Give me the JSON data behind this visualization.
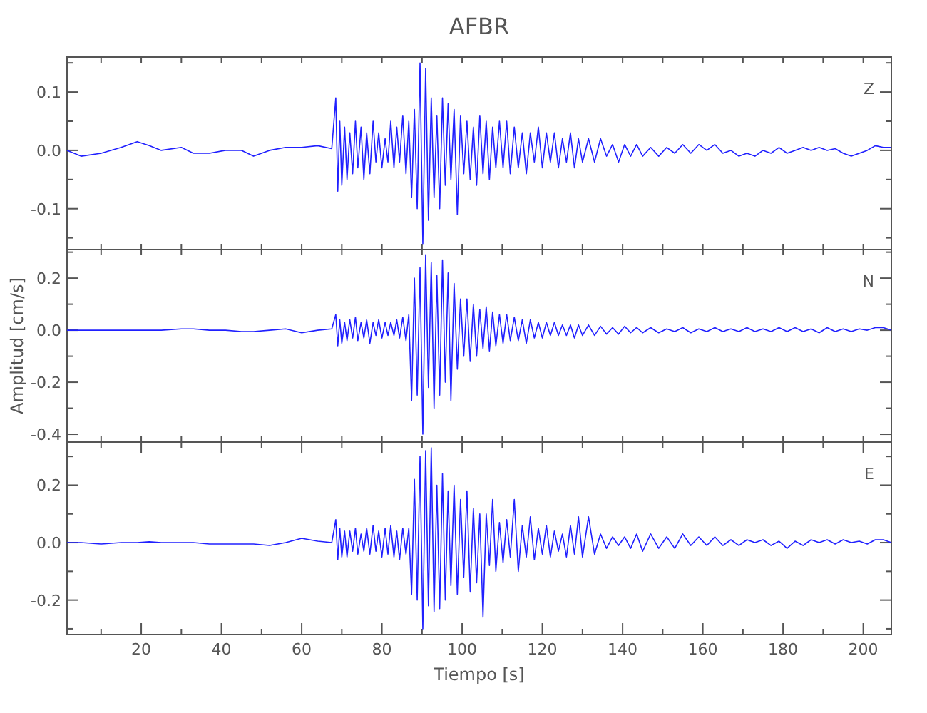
{
  "chart_data": [
    {
      "type": "line",
      "title": "AFBR",
      "annotations": [
        "Z"
      ],
      "tick_labels": "y",
      "xlim": [
        1.5,
        207
      ],
      "ylim": [
        -0.17,
        0.16
      ],
      "xticks": [
        {
          "value": 10,
          "label": null
        },
        {
          "value": 20,
          "label": null
        },
        {
          "value": 30,
          "label": null
        },
        {
          "value": 40,
          "label": null
        },
        {
          "value": 50,
          "label": null
        },
        {
          "value": 60,
          "label": null
        },
        {
          "value": 70,
          "label": null
        },
        {
          "value": 80,
          "label": null
        },
        {
          "value": 90,
          "label": null
        },
        {
          "value": 100,
          "label": null
        },
        {
          "value": 110,
          "label": null
        },
        {
          "value": 120,
          "label": null
        },
        {
          "value": 130,
          "label": null
        },
        {
          "value": 140,
          "label": null
        },
        {
          "value": 150,
          "label": null
        },
        {
          "value": 160,
          "label": null
        },
        {
          "value": 170,
          "label": null
        },
        {
          "value": 180,
          "label": null
        },
        {
          "value": 190,
          "label": null
        },
        {
          "value": 200,
          "label": null
        }
      ],
      "yticks": [
        {
          "value": -0.15,
          "label": null
        },
        -0.1,
        {
          "value": -0.05,
          "label": null
        },
        {
          "value": 0,
          "label": "0.0"
        },
        {
          "value": 0.05,
          "label": null
        },
        0.1,
        {
          "value": 0.15,
          "label": null
        }
      ],
      "x": [
        1.5,
        5,
        10,
        15,
        19,
        22,
        25,
        30,
        33,
        37,
        41,
        45,
        48,
        52,
        56,
        60,
        64,
        67.5,
        68.5,
        69,
        69.5,
        70,
        70.7,
        71.3,
        72,
        72.7,
        73.4,
        74,
        74.8,
        75.5,
        76.2,
        77,
        77.8,
        78.5,
        79.2,
        80,
        80.8,
        81.5,
        82.2,
        83,
        83.7,
        84.4,
        85.2,
        86,
        86.7,
        87.4,
        88.1,
        88.8,
        89.5,
        90.2,
        90.9,
        91.6,
        92.3,
        93,
        93.7,
        94.4,
        95.1,
        95.8,
        96.5,
        97.2,
        98,
        98.8,
        99.6,
        100.4,
        101.2,
        102,
        102.8,
        103.6,
        104.4,
        105.2,
        106,
        106.8,
        107.6,
        108.4,
        109.3,
        110.2,
        111.1,
        112,
        113,
        114,
        115,
        116,
        117,
        118,
        119,
        120,
        121,
        122,
        123,
        124,
        125,
        126,
        127,
        128,
        129,
        130,
        131.5,
        133,
        134.5,
        136,
        137.5,
        139,
        140.5,
        142,
        143.5,
        145,
        147,
        149,
        151,
        153,
        155,
        157,
        159,
        161,
        163,
        165,
        167,
        169,
        171,
        173,
        175,
        177,
        179,
        181,
        183,
        185,
        187,
        189,
        191,
        193,
        195,
        197,
        199,
        201,
        203,
        205,
        207
      ],
      "series": [
        {
          "color": "#2020ff",
          "values": [
            0,
            -0.01,
            -0.005,
            0.005,
            0.015,
            0.008,
            0,
            0.005,
            -0.005,
            -0.005,
            0,
            0,
            -0.01,
            0,
            0.005,
            0.005,
            0.008,
            0.003,
            0.09,
            -0.07,
            0.05,
            -0.06,
            0.04,
            -0.05,
            0.03,
            -0.04,
            0.05,
            -0.03,
            0.04,
            -0.05,
            0.03,
            -0.04,
            0.05,
            -0.02,
            0.03,
            -0.03,
            0.02,
            -0.02,
            0.05,
            -0.03,
            0.04,
            -0.02,
            0.06,
            -0.04,
            0.05,
            -0.08,
            0.07,
            -0.1,
            0.15,
            -0.16,
            0.14,
            -0.12,
            0.09,
            -0.08,
            0.06,
            -0.1,
            0.09,
            -0.06,
            0.08,
            -0.05,
            0.07,
            -0.11,
            0.06,
            -0.04,
            0.05,
            -0.05,
            0.04,
            -0.06,
            0.06,
            -0.04,
            0.05,
            -0.05,
            0.04,
            -0.03,
            0.05,
            -0.03,
            0.05,
            -0.04,
            0.04,
            -0.03,
            0.03,
            -0.04,
            0.03,
            -0.02,
            0.04,
            -0.03,
            0.03,
            -0.02,
            0.03,
            -0.03,
            0.02,
            -0.02,
            0.03,
            -0.03,
            0.02,
            -0.02,
            0.02,
            -0.02,
            0.02,
            -0.01,
            0.01,
            -0.02,
            0.01,
            -0.01,
            0.01,
            -0.01,
            0.005,
            -0.01,
            0.005,
            -0.005,
            0.01,
            -0.005,
            0.01,
            0,
            0.01,
            -0.005,
            0,
            -0.01,
            -0.005,
            -0.01,
            0,
            -0.005,
            0.005,
            -0.005,
            0,
            0.005,
            0,
            0.005,
            0,
            0.003,
            -0.005,
            -0.01,
            -0.005,
            0,
            0.008,
            0.005,
            0.005
          ]
        }
      ]
    },
    {
      "type": "line",
      "ylabel": "Amplitud [cm/s]",
      "annotations": [
        "N"
      ],
      "tick_labels": "y",
      "xlim": [
        1.5,
        207
      ],
      "ylim": [
        -0.43,
        0.31
      ],
      "xticks": [
        {
          "value": 10,
          "label": null
        },
        {
          "value": 20,
          "label": null
        },
        {
          "value": 30,
          "label": null
        },
        {
          "value": 40,
          "label": null
        },
        {
          "value": 50,
          "label": null
        },
        {
          "value": 60,
          "label": null
        },
        {
          "value": 70,
          "label": null
        },
        {
          "value": 80,
          "label": null
        },
        {
          "value": 90,
          "label": null
        },
        {
          "value": 100,
          "label": null
        },
        {
          "value": 110,
          "label": null
        },
        {
          "value": 120,
          "label": null
        },
        {
          "value": 130,
          "label": null
        },
        {
          "value": 140,
          "label": null
        },
        {
          "value": 150,
          "label": null
        },
        {
          "value": 160,
          "label": null
        },
        {
          "value": 170,
          "label": null
        },
        {
          "value": 180,
          "label": null
        },
        {
          "value": 190,
          "label": null
        },
        {
          "value": 200,
          "label": null
        }
      ],
      "yticks": [
        -0.4,
        {
          "value": -0.3,
          "label": null
        },
        -0.2,
        {
          "value": -0.1,
          "label": null
        },
        {
          "value": 0,
          "label": "0.0"
        },
        {
          "value": 0.1,
          "label": null
        },
        0.2,
        {
          "value": 0.3,
          "label": null
        }
      ],
      "x": [
        1.5,
        5,
        10,
        15,
        19,
        22,
        25,
        30,
        33,
        37,
        41,
        45,
        48,
        52,
        56,
        60,
        64,
        67.5,
        68.5,
        69,
        69.5,
        70,
        70.7,
        71.3,
        72,
        72.7,
        73.4,
        74,
        74.8,
        75.5,
        76.2,
        77,
        77.8,
        78.5,
        79.2,
        80,
        80.8,
        81.5,
        82.2,
        83,
        83.7,
        84.4,
        85.2,
        86,
        86.7,
        87.4,
        88.1,
        88.8,
        89.5,
        90.2,
        90.9,
        91.6,
        92.3,
        93,
        93.7,
        94.4,
        95.1,
        95.8,
        96.5,
        97.2,
        98,
        98.8,
        99.6,
        100.4,
        101.2,
        102,
        102.8,
        103.6,
        104.4,
        105.2,
        106,
        106.8,
        107.6,
        108.4,
        109.3,
        110.2,
        111.1,
        112,
        113,
        114,
        115,
        116,
        117,
        118,
        119,
        120,
        121,
        122,
        123,
        124,
        125,
        126,
        127,
        128,
        129,
        130,
        131.5,
        133,
        134.5,
        136,
        137.5,
        139,
        140.5,
        142,
        143.5,
        145,
        147,
        149,
        151,
        153,
        155,
        157,
        159,
        161,
        163,
        165,
        167,
        169,
        171,
        173,
        175,
        177,
        179,
        181,
        183,
        185,
        187,
        189,
        191,
        193,
        195,
        197,
        199,
        201,
        203,
        205,
        207
      ],
      "series": [
        {
          "color": "#2020ff",
          "values": [
            0,
            0,
            0,
            0,
            0,
            0,
            0,
            0.005,
            0.005,
            0,
            0,
            -0.005,
            -0.005,
            0,
            0.005,
            -0.01,
            0,
            0.005,
            0.06,
            -0.06,
            0.04,
            -0.05,
            0.03,
            -0.04,
            0.04,
            -0.03,
            0.05,
            -0.04,
            0.03,
            -0.03,
            0.04,
            -0.05,
            0.03,
            -0.02,
            0.04,
            -0.03,
            0.03,
            -0.02,
            0.03,
            -0.02,
            0.04,
            -0.03,
            0.05,
            -0.04,
            0.06,
            -0.27,
            0.2,
            -0.25,
            0.24,
            -0.4,
            0.29,
            -0.22,
            0.26,
            -0.3,
            0.21,
            -0.25,
            0.27,
            -0.2,
            0.22,
            -0.27,
            0.18,
            -0.15,
            0.12,
            -0.1,
            0.12,
            -0.12,
            0.1,
            -0.1,
            0.08,
            -0.07,
            0.09,
            -0.08,
            0.07,
            -0.06,
            0.06,
            -0.05,
            0.06,
            -0.04,
            0.05,
            -0.04,
            0.04,
            -0.05,
            0.04,
            -0.03,
            0.03,
            -0.03,
            0.03,
            -0.02,
            0.03,
            -0.02,
            0.02,
            -0.02,
            0.02,
            -0.03,
            0.02,
            -0.02,
            0.02,
            -0.02,
            0.015,
            -0.015,
            0.01,
            -0.015,
            0.015,
            -0.01,
            0.01,
            -0.01,
            0.01,
            -0.01,
            0.005,
            -0.005,
            0.01,
            -0.01,
            0.005,
            -0.005,
            0.01,
            -0.005,
            0.005,
            -0.005,
            0.01,
            -0.005,
            0.005,
            -0.005,
            0.01,
            -0.005,
            0.01,
            -0.005,
            0.005,
            -0.01,
            0.01,
            -0.005,
            0.005,
            -0.005,
            0.005,
            0,
            0.01,
            0.01,
            0
          ]
        }
      ]
    },
    {
      "type": "line",
      "xlabel": "Tiempo [s]",
      "annotations": [
        "E"
      ],
      "xlim": [
        1.5,
        207
      ],
      "ylim": [
        -0.32,
        0.35
      ],
      "xticks": [
        {
          "value": 10,
          "label": null
        },
        20,
        {
          "value": 30,
          "label": null
        },
        40,
        {
          "value": 50,
          "label": null
        },
        60,
        {
          "value": 70,
          "label": null
        },
        80,
        {
          "value": 90,
          "label": null
        },
        100,
        {
          "value": 110,
          "label": null
        },
        120,
        {
          "value": 130,
          "label": null
        },
        140,
        {
          "value": 150,
          "label": null
        },
        160,
        {
          "value": 170,
          "label": null
        },
        180,
        {
          "value": 190,
          "label": null
        },
        200
      ],
      "yticks": [
        {
          "value": -0.3,
          "label": null
        },
        -0.2,
        {
          "value": -0.1,
          "label": null
        },
        {
          "value": 0,
          "label": "0.0"
        },
        {
          "value": 0.1,
          "label": null
        },
        0.2,
        {
          "value": 0.3,
          "label": null
        }
      ],
      "x": [
        1.5,
        5,
        10,
        15,
        19,
        22,
        25,
        30,
        33,
        37,
        41,
        45,
        48,
        52,
        56,
        60,
        64,
        67.5,
        68.5,
        69,
        69.5,
        70,
        70.7,
        71.3,
        72,
        72.7,
        73.4,
        74,
        74.8,
        75.5,
        76.2,
        77,
        77.8,
        78.5,
        79.2,
        80,
        80.8,
        81.5,
        82.2,
        83,
        83.7,
        84.4,
        85.2,
        86,
        86.7,
        87.4,
        88.1,
        88.8,
        89.5,
        90.2,
        90.9,
        91.6,
        92.3,
        93,
        93.7,
        94.4,
        95.1,
        95.8,
        96.5,
        97.2,
        98,
        98.8,
        99.6,
        100.4,
        101.2,
        102,
        102.8,
        103.6,
        104.4,
        105.2,
        106,
        106.8,
        107.6,
        108.4,
        109.3,
        110.2,
        111.1,
        112,
        113,
        114,
        115,
        116,
        117,
        118,
        119,
        120,
        121,
        122,
        123,
        124,
        125,
        126,
        127,
        128,
        129,
        130,
        131.5,
        133,
        134.5,
        136,
        137.5,
        139,
        140.5,
        142,
        143.5,
        145,
        147,
        149,
        151,
        153,
        155,
        157,
        159,
        161,
        163,
        165,
        167,
        169,
        171,
        173,
        175,
        177,
        179,
        181,
        183,
        185,
        187,
        189,
        191,
        193,
        195,
        197,
        199,
        201,
        203,
        205,
        207
      ],
      "series": [
        {
          "color": "#2020ff",
          "values": [
            0,
            0,
            -0.005,
            0,
            0,
            0.003,
            0,
            0,
            0,
            -0.005,
            -0.005,
            -0.005,
            -0.005,
            -0.01,
            0,
            0.015,
            0.005,
            0,
            0.08,
            -0.06,
            0.05,
            -0.05,
            0.04,
            -0.05,
            0.04,
            -0.03,
            0.05,
            -0.04,
            0.03,
            -0.03,
            0.05,
            -0.04,
            0.06,
            -0.03,
            0.04,
            -0.05,
            0.05,
            -0.04,
            0.06,
            -0.05,
            0.04,
            -0.06,
            0.05,
            -0.04,
            0.05,
            -0.18,
            0.22,
            -0.2,
            0.3,
            -0.3,
            0.32,
            -0.22,
            0.33,
            -0.24,
            0.2,
            -0.23,
            0.24,
            -0.2,
            0.18,
            -0.15,
            0.2,
            -0.18,
            0.15,
            -0.12,
            0.18,
            -0.17,
            0.12,
            -0.14,
            0.1,
            -0.26,
            0.1,
            -0.08,
            0.15,
            -0.1,
            0.07,
            -0.07,
            0.08,
            -0.05,
            0.15,
            -0.1,
            0.06,
            -0.05,
            0.09,
            -0.06,
            0.05,
            -0.04,
            0.06,
            -0.05,
            0.04,
            -0.03,
            0.03,
            -0.05,
            0.06,
            -0.04,
            0.09,
            -0.05,
            0.09,
            -0.04,
            0.03,
            -0.02,
            0.02,
            -0.01,
            0.02,
            -0.02,
            0.03,
            -0.03,
            0.03,
            -0.02,
            0.02,
            -0.02,
            0.03,
            -0.01,
            0.02,
            -0.01,
            0.02,
            -0.01,
            0.01,
            -0.01,
            0.01,
            0,
            0.01,
            -0.01,
            0.005,
            -0.02,
            0.005,
            -0.01,
            0.01,
            0,
            0.01,
            -0.005,
            0.01,
            0,
            0.005,
            -0.005,
            0.01,
            0.01,
            0
          ]
        }
      ]
    }
  ]
}
